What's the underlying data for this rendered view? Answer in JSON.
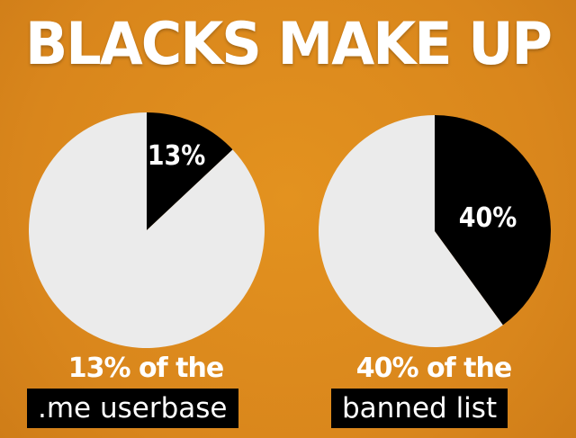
{
  "title": "BLACKS MAKE UP",
  "colors": {
    "background": "#dd8a1f",
    "slice": "#000000",
    "rest": "#ebebeb",
    "text": "#ffffff"
  },
  "chart_data": [
    {
      "type": "pie",
      "values": [
        13,
        87
      ],
      "slice_label": "13%",
      "caption_line1": "13% of the",
      "caption_line2": ".me userbase"
    },
    {
      "type": "pie",
      "values": [
        40,
        60
      ],
      "slice_label": "40%",
      "caption_line1": "40% of the",
      "caption_line2": "banned list"
    }
  ]
}
